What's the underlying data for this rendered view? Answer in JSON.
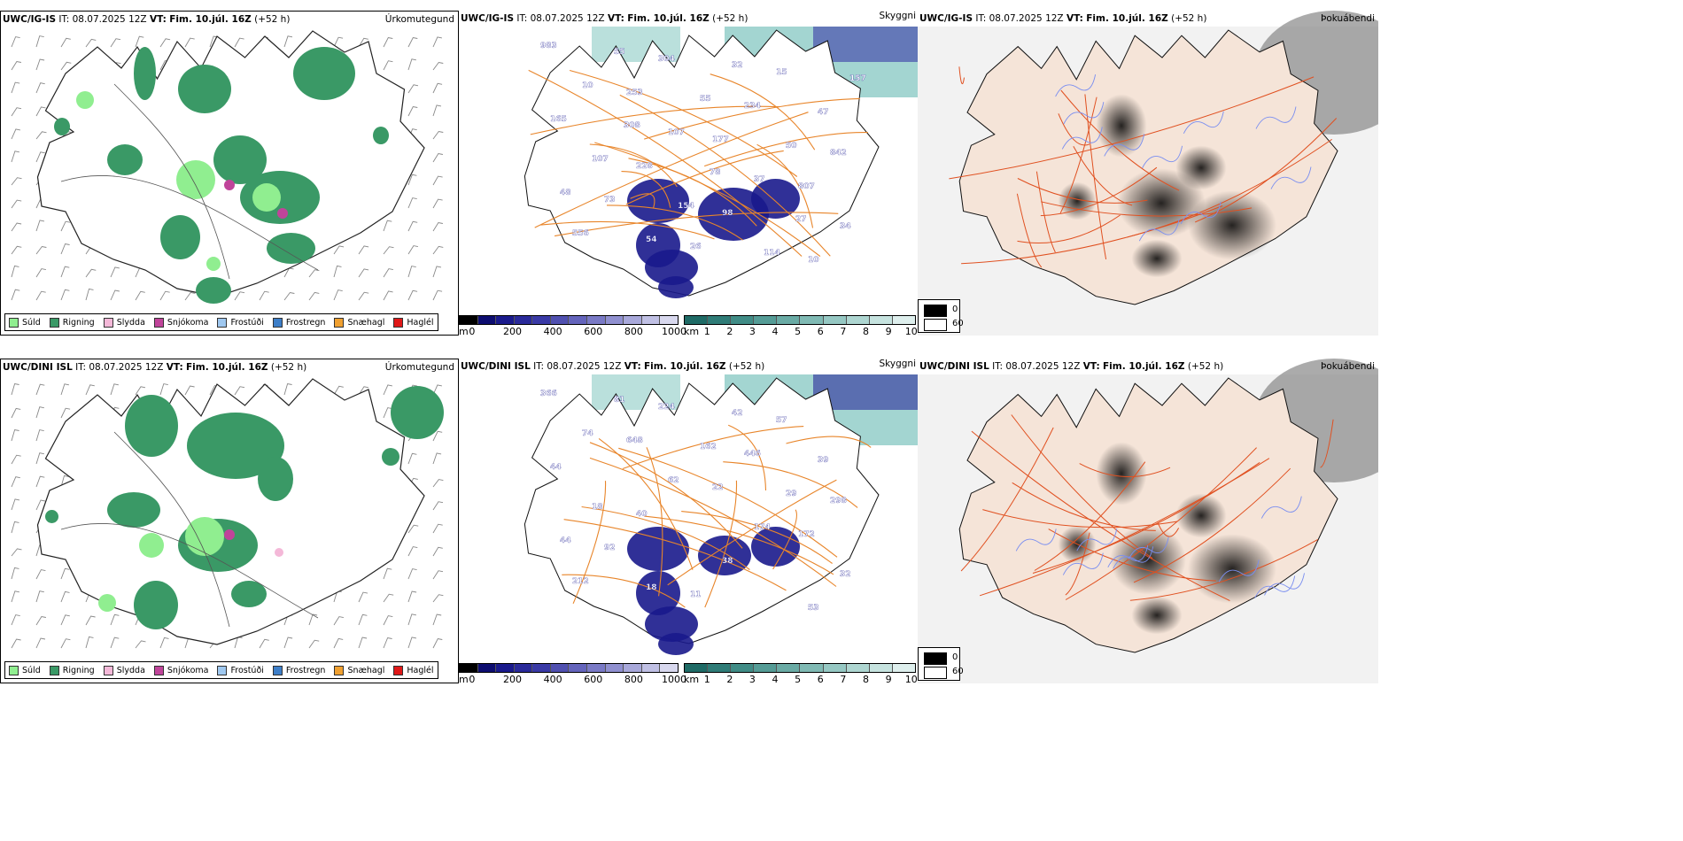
{
  "rows": [
    {
      "model_label": "UWC/IG-IS",
      "it_label": "IT:",
      "it_value": "08.07.2025 12Z",
      "vt_label": "VT:",
      "vt_value": "Fim. 10.júl. 16Z",
      "lead": "(+52 h)",
      "precip_title": "Úrkomutegund",
      "cloud_title": "Skyggni",
      "fog_title": "Þokuábendi",
      "cloud_labels": [
        "983",
        "253",
        "177",
        "807",
        "556",
        "304",
        "234",
        "842",
        "73",
        "26",
        "15",
        "165",
        "228",
        "98",
        "10",
        "10",
        "107",
        "37",
        "34",
        "55",
        "55",
        "50",
        "48",
        "54",
        "32",
        "47",
        "107",
        "154",
        "114",
        "157",
        "308",
        "78",
        "27"
      ]
    },
    {
      "model_label": "UWC/DINI ISL",
      "it_label": "IT:",
      "it_value": "08.07.2025 12Z",
      "vt_label": "VT:",
      "vt_value": "Fim. 10.júl. 16Z",
      "lead": "(+52 h)",
      "precip_title": "Úrkomutegund",
      "cloud_title": "Skyggni",
      "fog_title": "Þokuábendi",
      "cloud_labels": [
        "366",
        "648",
        "22",
        "172",
        "212",
        "224",
        "446",
        "298",
        "92",
        "11",
        "57",
        "44",
        "40",
        "38",
        "53",
        "74",
        "62",
        "174",
        "32",
        "81",
        "162",
        "29",
        "44",
        "18",
        "42",
        "39",
        "18"
      ]
    }
  ],
  "precip_legend": [
    {
      "label": "Súld",
      "color": "#90ee90"
    },
    {
      "label": "Rigning",
      "color": "#3a9966"
    },
    {
      "label": "Slydda",
      "color": "#f4b8d8"
    },
    {
      "label": "Snjókoma",
      "color": "#c0449a"
    },
    {
      "label": "Frostúði",
      "color": "#9fc8f0"
    },
    {
      "label": "Frostregn",
      "color": "#3d7ec8"
    },
    {
      "label": "Snæhagl",
      "color": "#f0a030"
    },
    {
      "label": "Haglél",
      "color": "#e01818"
    }
  ],
  "ceiling_scale": {
    "unit": "m",
    "ticks": [
      "0",
      "200",
      "400",
      "600",
      "800",
      "1000"
    ],
    "colors": [
      "#000000",
      "#0d0d70",
      "#1a1a8c",
      "#2a2a9a",
      "#3a3aa6",
      "#5050b0",
      "#6464bc",
      "#7a7ac6",
      "#9090d0",
      "#a8a8da",
      "#c0c0e4",
      "#d8d8ee"
    ]
  },
  "visibility_scale": {
    "unit": "km",
    "ticks": [
      "1",
      "2",
      "3",
      "4",
      "5",
      "6",
      "7",
      "8",
      "9",
      "10"
    ],
    "colors": [
      "#1f6b66",
      "#2f7c77",
      "#408c86",
      "#559c96",
      "#6aaba5",
      "#80bab4",
      "#96c8c3",
      "#aed6d1",
      "#c6e3df",
      "#deefed"
    ]
  },
  "fog_legend": [
    {
      "label": "0",
      "color": "#000000"
    },
    {
      "label": "60",
      "color": "#ffffff"
    }
  ]
}
